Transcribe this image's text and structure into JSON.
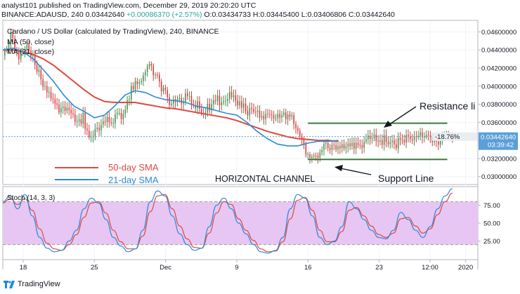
{
  "header": {
    "line1": "analyst101 published on TradingView.com, December 29, 2019 20:20:20 UTC",
    "symbol": "BINANCE:ADAUSD, 240",
    "price": "0.03442640",
    "change": "+0.00086370 (+2.57%)",
    "ohlc": "O:0.03434733 H:0.03445400 L:0.03406806 C:0.03442640"
  },
  "chart_data": {
    "type": "line",
    "title": "Cardano / US Dollar (calculated by TradingView), 240, BINANCE",
    "legend_ma50": "MA (50, close)",
    "legend_ma21": "MA (21, close)",
    "price_axis": [
      "0.04600000",
      "0.04400000",
      "0.04200000",
      "0.04000000",
      "0.03800000",
      "0.03600000",
      "0.03400000",
      "0.03200000",
      "0.03000000"
    ],
    "price_ticks": [
      0.046,
      0.044,
      0.042,
      0.04,
      0.038,
      0.036,
      0.034,
      0.032,
      0.03
    ],
    "ylim": [
      0.0292,
      0.0472
    ],
    "x_labels": [
      "18",
      "25",
      "Dec",
      "9",
      "16",
      "23",
      "12:00",
      "2020"
    ],
    "x_label_pos": [
      0,
      7,
      14,
      21,
      28,
      35,
      40,
      43.5
    ],
    "xlim": [
      -2,
      44.7
    ],
    "price_label": "0.03442640",
    "change_label": "-18.76%",
    "countdown": "03:39:42",
    "close_series": [
      0.044,
      0.0455,
      0.0435,
      0.0445,
      0.0425,
      0.04,
      0.0385,
      0.0375,
      0.0378,
      0.036,
      0.0365,
      0.034,
      0.0355,
      0.036,
      0.0365,
      0.037,
      0.0395,
      0.0405,
      0.042,
      0.0415,
      0.0395,
      0.038,
      0.0385,
      0.039,
      0.038,
      0.0372,
      0.038,
      0.0385,
      0.039,
      0.0385,
      0.0375,
      0.0372,
      0.0368,
      0.037,
      0.0368,
      0.037,
      0.0362,
      0.034,
      0.0325,
      0.032,
      0.0335,
      0.033,
      0.0332,
      0.034,
      0.0335,
      0.0335,
      0.0345,
      0.034,
      0.034,
      0.0336,
      0.034,
      0.0345,
      0.0345,
      0.0345,
      0.034,
      0.0342,
      0.0344
    ],
    "sma50": [
      0.044,
      0.044,
      0.0438,
      0.0435,
      0.043,
      0.0423,
      0.0414,
      0.0405,
      0.0396,
      0.0388,
      0.0383,
      0.0382,
      0.0382,
      0.0382,
      0.038,
      0.0378,
      0.0376,
      0.0375,
      0.0373,
      0.0371,
      0.0369,
      0.0367,
      0.0365,
      0.0362,
      0.0358,
      0.0354,
      0.035,
      0.0347,
      0.0344,
      0.0342,
      0.0341,
      0.034,
      0.034,
      0.0339
    ],
    "sma50_x": [
      -2,
      -1,
      0,
      1,
      2,
      3,
      4,
      5,
      6,
      7,
      8,
      9,
      10,
      11,
      12,
      13,
      14,
      15,
      16,
      17,
      18,
      19,
      20,
      21,
      22,
      23,
      24,
      25,
      26,
      27,
      28,
      29,
      30,
      31
    ],
    "sma21": [
      0.044,
      0.0442,
      0.0438,
      0.043,
      0.0418,
      0.0405,
      0.039,
      0.0378,
      0.0372,
      0.0365,
      0.0368,
      0.0378,
      0.039,
      0.0395,
      0.0393,
      0.0388,
      0.0385,
      0.0384,
      0.0382,
      0.0378,
      0.0376,
      0.0373,
      0.037,
      0.0368,
      0.036,
      0.035,
      0.0342,
      0.0336,
      0.0334,
      0.0334,
      0.0337,
      0.0339,
      0.0339,
      0.034
    ],
    "sma21_x": [
      -2,
      -1,
      0,
      1,
      2,
      3,
      4,
      5,
      6,
      7,
      8,
      9,
      10,
      11,
      12,
      13,
      14,
      15,
      16,
      17,
      18,
      19,
      20,
      21,
      22,
      23,
      24,
      25,
      26,
      27,
      28,
      29,
      30,
      31
    ],
    "resistance_level": 0.0359,
    "support_level": 0.0319,
    "channel_x": [
      28,
      41.7
    ],
    "stoch_title": "Stoch (14, 3, 3)",
    "stoch_axis": [
      "75.00",
      "50.00",
      "25.00"
    ],
    "stoch_ticks": [
      75,
      50,
      25
    ],
    "stoch_upper": 80,
    "stoch_lower": 20,
    "stoch_ylim": [
      0,
      100
    ],
    "stoch_k": [
      80,
      88,
      70,
      90,
      60,
      30,
      15,
      10,
      12,
      25,
      40,
      70,
      85,
      78,
      55,
      30,
      18,
      10,
      14,
      40,
      80,
      95,
      88,
      60,
      35,
      20,
      12,
      15,
      45,
      75,
      85,
      70,
      50,
      35,
      20,
      10,
      8,
      12,
      30,
      70,
      90,
      85,
      60,
      30,
      20,
      25,
      45,
      80,
      70,
      55,
      40,
      30,
      28,
      40,
      65,
      55,
      40,
      30,
      45,
      70,
      88,
      98
    ],
    "stoch_d": [
      78,
      84,
      76,
      84,
      68,
      42,
      22,
      14,
      12,
      20,
      34,
      58,
      78,
      80,
      64,
      40,
      24,
      14,
      14,
      32,
      66,
      88,
      90,
      70,
      46,
      28,
      16,
      15,
      36,
      64,
      80,
      76,
      56,
      40,
      26,
      14,
      10,
      11,
      24,
      56,
      82,
      86,
      68,
      40,
      24,
      24,
      38,
      68,
      72,
      60,
      46,
      34,
      30,
      36,
      56,
      58,
      46,
      36,
      42,
      62,
      80,
      92
    ]
  },
  "annotations": {
    "resistance": "Resistance li",
    "support": "Support Line",
    "channel": "HORIZONTAL CHANNEL",
    "sma50": "50-day SMA",
    "sma21": "21-day SMA"
  },
  "colors": {
    "sma50": "#e0483e",
    "sma21": "#2a8bd6",
    "channel_line": "#3f7a3f",
    "candle_up": "#4f8a4f",
    "candle_down": "#d63c3c",
    "stoch_band": "#e7c6f3",
    "stoch_k": "#2a8bd6",
    "stoch_d": "#e0483e",
    "price_tag": "#5b9fd8",
    "change_tag": "#e9edf2",
    "header_green": "#26a69a"
  },
  "footer": {
    "brand": "TradingView"
  }
}
